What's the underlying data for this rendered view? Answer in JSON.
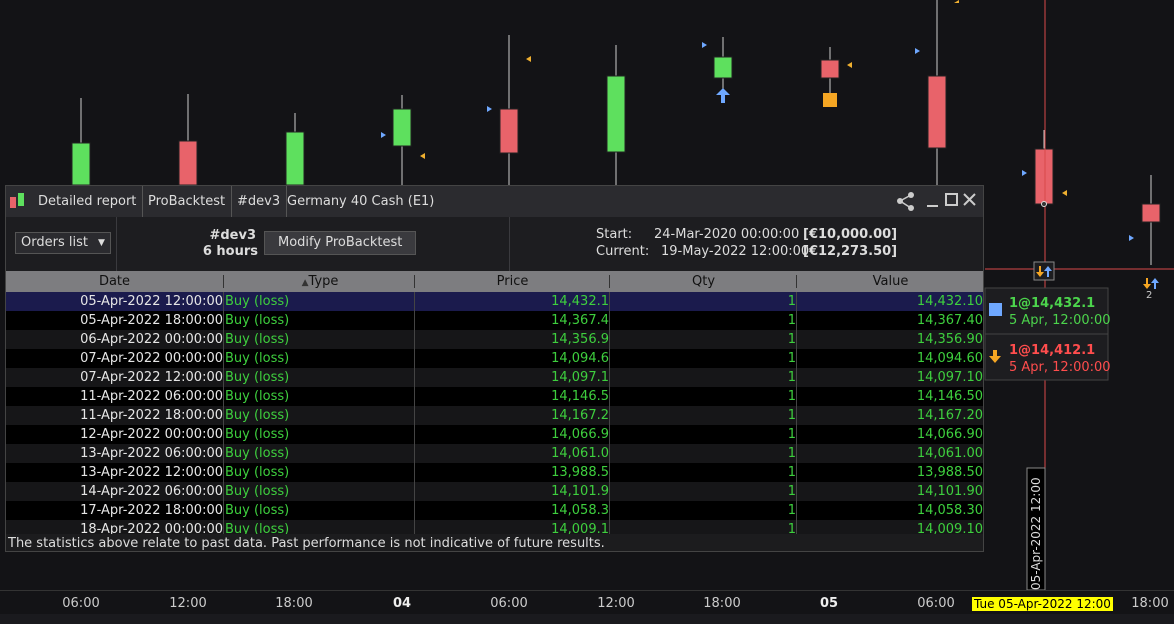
{
  "chart": {
    "x_axis_labels": [
      "06:00",
      "12:00",
      "18:00",
      "04",
      "06:00",
      "12:00",
      "18:00",
      "05",
      "06:00",
      "18:00"
    ],
    "cursor_label": "Tue 05-Apr-2022 12:00",
    "cursor_vertical_label": "05-Apr-2022 12:00",
    "marker_count": "2"
  },
  "tooltip": [
    {
      "order": "1@14,432.1",
      "time": "5 Apr, 12:00:00"
    },
    {
      "order": "1@14,412.1",
      "time": "5 Apr, 12:00:00"
    }
  ],
  "report": {
    "tabs": [
      "Detailed report",
      "ProBacktest",
      "#dev3",
      "Germany 40 Cash (E1)"
    ],
    "dropdown": "Orders list",
    "name": "#dev3",
    "period": "6 hours",
    "button": "Modify ProBacktest",
    "start_label": "Start:",
    "start": "24-Mar-2020 00:00:00",
    "start_capital": "[€10,000.00]",
    "current_label": "Current:",
    "current": "19-May-2022 12:00:00",
    "current_capital": "[€12,273.50]",
    "columns": [
      "Date",
      "Type",
      "Price",
      "Qty",
      "Value"
    ],
    "rows": [
      [
        "05-Apr-2022 12:00:00",
        "Buy (loss)",
        "14,432.1",
        "1",
        "14,432.10"
      ],
      [
        "05-Apr-2022 18:00:00",
        "Buy (loss)",
        "14,367.4",
        "1",
        "14,367.40"
      ],
      [
        "06-Apr-2022 00:00:00",
        "Buy (loss)",
        "14,356.9",
        "1",
        "14,356.90"
      ],
      [
        "07-Apr-2022 00:00:00",
        "Buy (loss)",
        "14,094.6",
        "1",
        "14,094.60"
      ],
      [
        "07-Apr-2022 12:00:00",
        "Buy (loss)",
        "14,097.1",
        "1",
        "14,097.10"
      ],
      [
        "11-Apr-2022 06:00:00",
        "Buy (loss)",
        "14,146.5",
        "1",
        "14,146.50"
      ],
      [
        "11-Apr-2022 18:00:00",
        "Buy (loss)",
        "14,167.2",
        "1",
        "14,167.20"
      ],
      [
        "12-Apr-2022 00:00:00",
        "Buy (loss)",
        "14,066.9",
        "1",
        "14,066.90"
      ],
      [
        "13-Apr-2022 06:00:00",
        "Buy (loss)",
        "14,061.0",
        "1",
        "14,061.00"
      ],
      [
        "13-Apr-2022 12:00:00",
        "Buy (loss)",
        "13,988.5",
        "1",
        "13,988.50"
      ],
      [
        "14-Apr-2022 06:00:00",
        "Buy (loss)",
        "14,101.9",
        "1",
        "14,101.90"
      ],
      [
        "17-Apr-2022 18:00:00",
        "Buy (loss)",
        "14,058.3",
        "1",
        "14,058.30"
      ],
      [
        "18-Apr-2022 00:00:00",
        "Buy (loss)",
        "14,009.1",
        "1",
        "14,009.10"
      ]
    ],
    "footer": "The statistics above relate to past data. Past performance is not indicative of future results."
  }
}
